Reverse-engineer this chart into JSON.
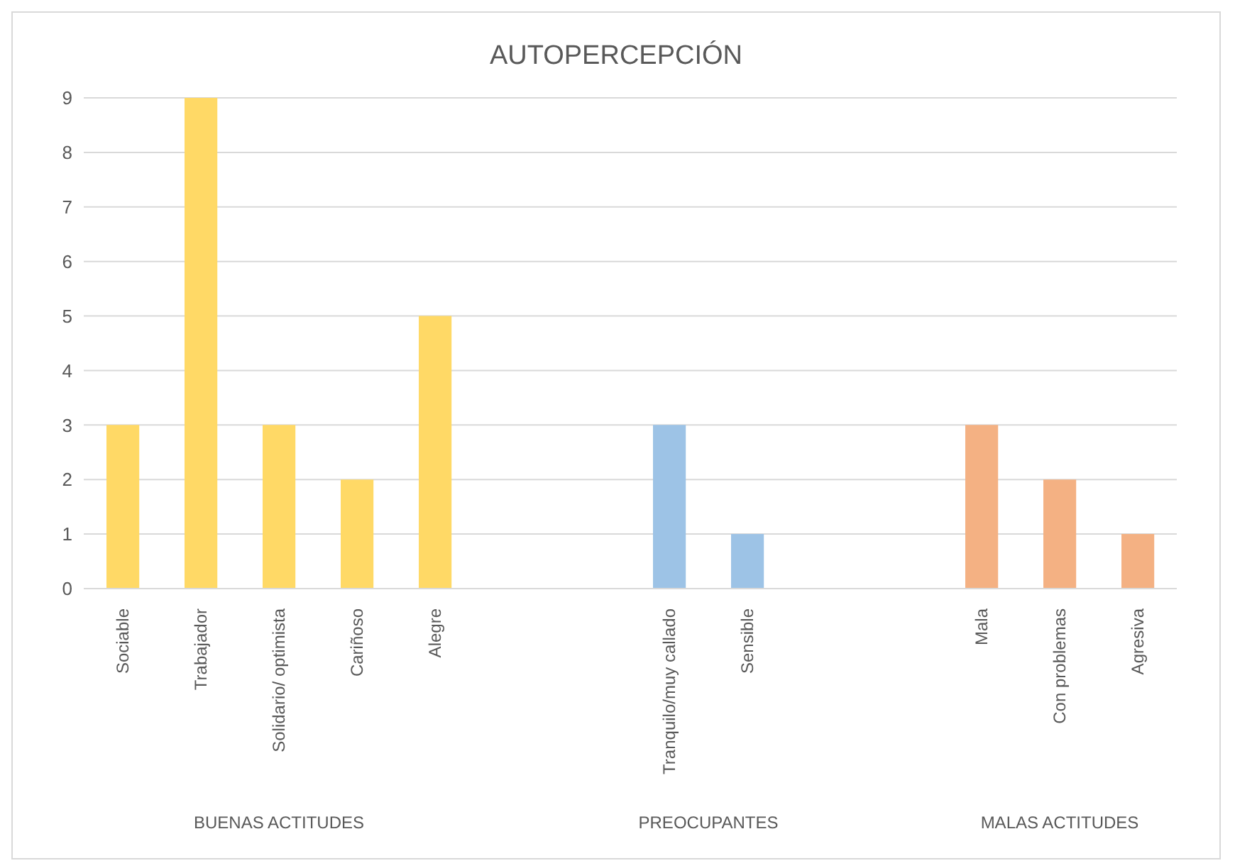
{
  "chart_data": {
    "type": "bar",
    "title": "AUTOPERCEPCIÓN",
    "categories": [
      "Sociable",
      "Trabajador",
      "Solidario/ optimista",
      "Cariñoso",
      "Alegre",
      null,
      null,
      "Tranquilo/muy callado",
      "Sensible",
      null,
      null,
      "Mala",
      "Con problemas",
      "Agresiva"
    ],
    "values": [
      3,
      9,
      3,
      2,
      5,
      null,
      null,
      3,
      1,
      null,
      null,
      3,
      2,
      1
    ],
    "colors": [
      "#ffd966",
      "#ffd966",
      "#ffd966",
      "#ffd966",
      "#ffd966",
      null,
      null,
      "#9dc3e6",
      "#9dc3e6",
      null,
      null,
      "#f4b183",
      "#f4b183",
      "#f4b183"
    ],
    "annotations": [
      "BUENAS ACTITUDES",
      "PREOCUPANTES",
      "MALAS ACTITUDES"
    ],
    "ylim": [
      0,
      9
    ],
    "yticks": [
      0,
      1,
      2,
      3,
      4,
      5,
      6,
      7,
      8,
      9
    ],
    "grid": "y"
  }
}
